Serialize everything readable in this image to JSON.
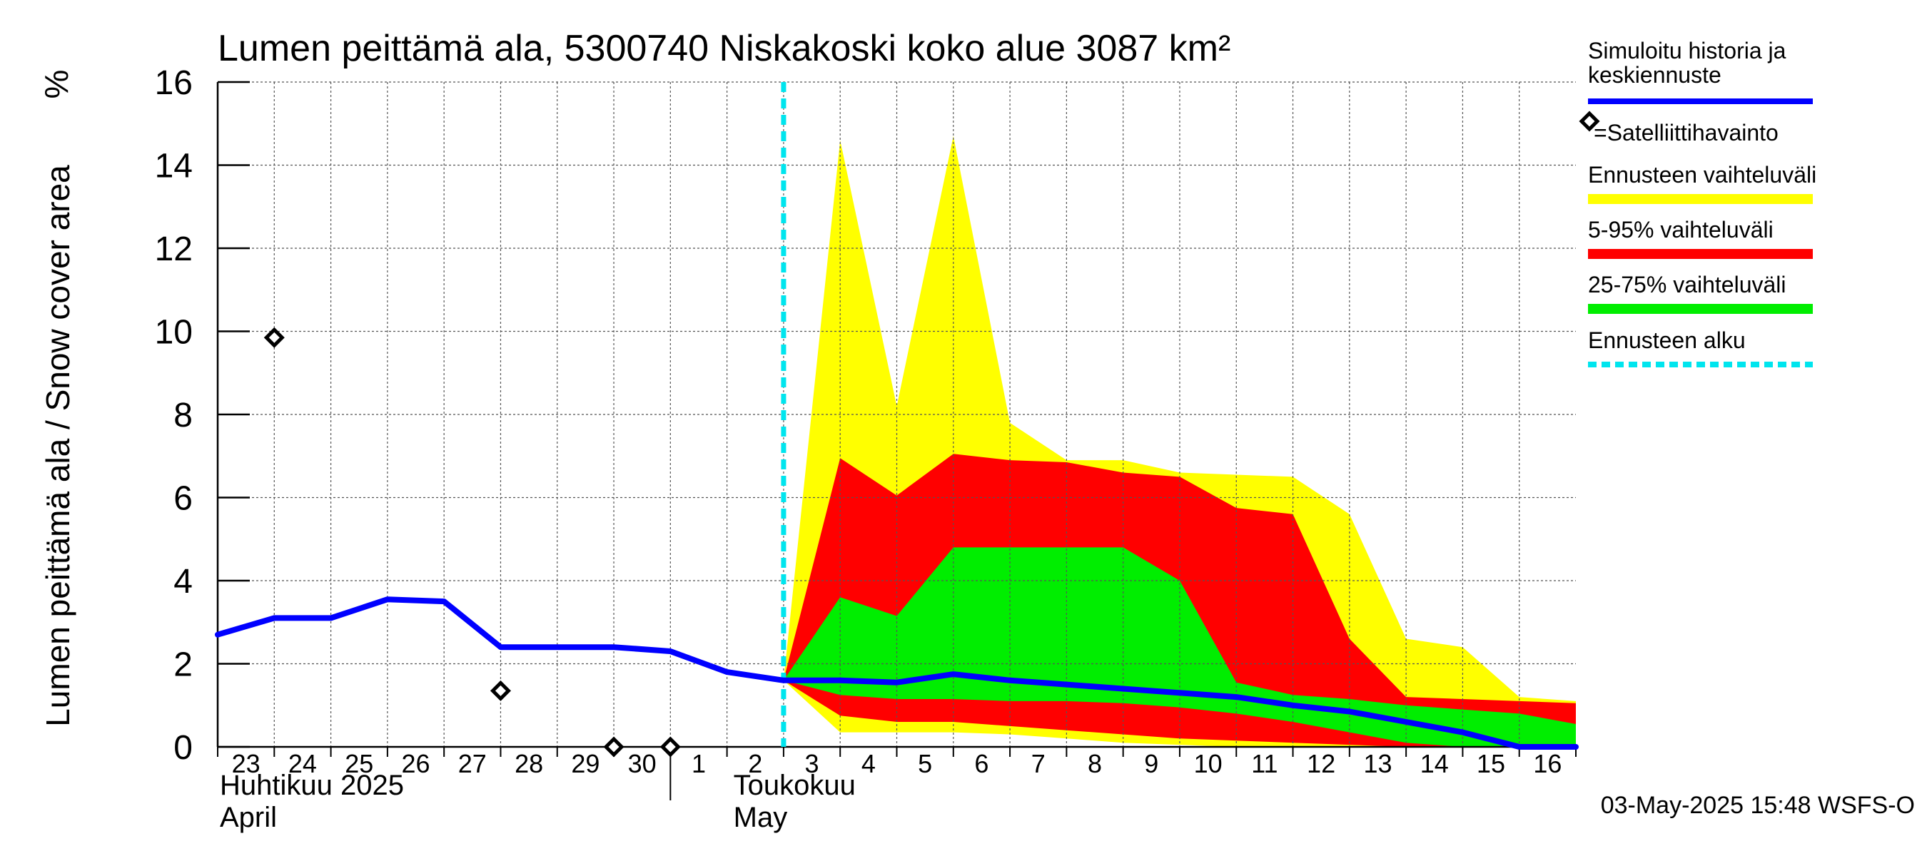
{
  "chart_data": {
    "type": "area",
    "title": "Lumen peittämä ala, 5300740 Niskakoski koko alue 3087 km²",
    "ylabel": "Lumen peittämä ala / Snow cover area",
    "yunit": "%",
    "ylim": [
      0,
      16
    ],
    "yticks": [
      0,
      2,
      4,
      6,
      8,
      10,
      12,
      14,
      16
    ],
    "x_dates": [
      "2025-04-23",
      "2025-04-24",
      "2025-04-25",
      "2025-04-26",
      "2025-04-27",
      "2025-04-28",
      "2025-04-29",
      "2025-04-30",
      "2025-05-01",
      "2025-05-02",
      "2025-05-03",
      "2025-05-04",
      "2025-05-05",
      "2025-05-06",
      "2025-05-07",
      "2025-05-08",
      "2025-05-09",
      "2025-05-10",
      "2025-05-11",
      "2025-05-12",
      "2025-05-13",
      "2025-05-14",
      "2025-05-15",
      "2025-05-16",
      "2025-05-17"
    ],
    "tick_labels": [
      "23",
      "24",
      "25",
      "26",
      "27",
      "28",
      "29",
      "30",
      "1",
      "2",
      "3",
      "4",
      "5",
      "6",
      "7",
      "8",
      "9",
      "10",
      "11",
      "12",
      "13",
      "14",
      "15",
      "16"
    ],
    "month_labels": [
      {
        "fi": "Huhtikuu  2025",
        "en": "April"
      },
      {
        "fi": "Toukokuu",
        "en": "May"
      }
    ],
    "grid": true,
    "forecast_start": "2025-05-03",
    "series": [
      {
        "name": "Simuloitu historia ja keskiennuste",
        "kind": "line",
        "color": "#0000ff",
        "x": [
          "2025-04-23",
          "2025-04-24",
          "2025-04-25",
          "2025-04-26",
          "2025-04-27",
          "2025-04-28",
          "2025-04-29",
          "2025-04-30",
          "2025-05-01",
          "2025-05-02",
          "2025-05-03",
          "2025-05-04",
          "2025-05-05",
          "2025-05-06",
          "2025-05-07",
          "2025-05-08",
          "2025-05-09",
          "2025-05-10",
          "2025-05-11",
          "2025-05-12",
          "2025-05-13",
          "2025-05-14",
          "2025-05-15",
          "2025-05-16",
          "2025-05-17"
        ],
        "values": [
          2.7,
          3.1,
          3.1,
          3.55,
          3.5,
          2.4,
          2.4,
          2.4,
          2.3,
          1.8,
          1.6,
          1.6,
          1.55,
          1.75,
          1.6,
          1.5,
          1.4,
          1.3,
          1.2,
          1.0,
          0.85,
          0.6,
          0.35,
          0.0,
          0.0
        ]
      },
      {
        "name": "=Satelliittihavainto",
        "kind": "marker",
        "color": "#000000",
        "x": [
          "2025-04-24",
          "2025-04-28",
          "2025-04-30",
          "2025-05-01"
        ],
        "values": [
          9.85,
          1.35,
          0.0,
          0.0
        ]
      },
      {
        "name": "Ennusteen vaihteluväli",
        "kind": "band",
        "color": "#ffff00",
        "x": [
          "2025-05-03",
          "2025-05-04",
          "2025-05-05",
          "2025-05-06",
          "2025-05-07",
          "2025-05-08",
          "2025-05-09",
          "2025-05-10",
          "2025-05-11",
          "2025-05-12",
          "2025-05-13",
          "2025-05-14",
          "2025-05-15",
          "2025-05-16",
          "2025-05-17"
        ],
        "upper": [
          1.6,
          14.6,
          8.2,
          14.7,
          7.8,
          6.9,
          6.9,
          6.6,
          6.55,
          6.5,
          5.6,
          2.6,
          2.4,
          1.2,
          1.1
        ],
        "lower": [
          1.6,
          0.35,
          0.35,
          0.35,
          0.3,
          0.2,
          0.1,
          0.05,
          0.0,
          0.0,
          0.0,
          0.0,
          0.0,
          0.0,
          0.0
        ]
      },
      {
        "name": "5-95% vaihteluväli",
        "kind": "band",
        "color": "#ff0000",
        "x": [
          "2025-05-03",
          "2025-05-04",
          "2025-05-05",
          "2025-05-06",
          "2025-05-07",
          "2025-05-08",
          "2025-05-09",
          "2025-05-10",
          "2025-05-11",
          "2025-05-12",
          "2025-05-13",
          "2025-05-14",
          "2025-05-15",
          "2025-05-16",
          "2025-05-17"
        ],
        "upper": [
          1.6,
          6.95,
          6.05,
          7.05,
          6.9,
          6.85,
          6.6,
          6.5,
          5.75,
          5.6,
          2.6,
          1.2,
          1.15,
          1.1,
          1.05
        ],
        "lower": [
          1.6,
          0.75,
          0.6,
          0.6,
          0.5,
          0.4,
          0.3,
          0.2,
          0.15,
          0.1,
          0.05,
          0.0,
          0.0,
          0.0,
          0.0
        ]
      },
      {
        "name": "25-75% vaihteluväli",
        "kind": "band",
        "color": "#00ee00",
        "x": [
          "2025-05-03",
          "2025-05-04",
          "2025-05-05",
          "2025-05-06",
          "2025-05-07",
          "2025-05-08",
          "2025-05-09",
          "2025-05-10",
          "2025-05-11",
          "2025-05-12",
          "2025-05-13",
          "2025-05-14",
          "2025-05-15",
          "2025-05-16",
          "2025-05-17"
        ],
        "upper": [
          1.6,
          3.6,
          3.15,
          4.8,
          4.8,
          4.8,
          4.8,
          4.0,
          1.55,
          1.25,
          1.15,
          1.0,
          0.9,
          0.8,
          0.55
        ],
        "lower": [
          1.6,
          1.25,
          1.15,
          1.15,
          1.1,
          1.1,
          1.05,
          0.95,
          0.8,
          0.6,
          0.35,
          0.1,
          0.0,
          0.0,
          0.0
        ]
      },
      {
        "name": "Ennusteen alku",
        "kind": "vline",
        "color": "#00e5ee",
        "x": "2025-05-03"
      }
    ],
    "legend_position": "right",
    "footer": "03-May-2025 15:48 WSFS-O"
  }
}
